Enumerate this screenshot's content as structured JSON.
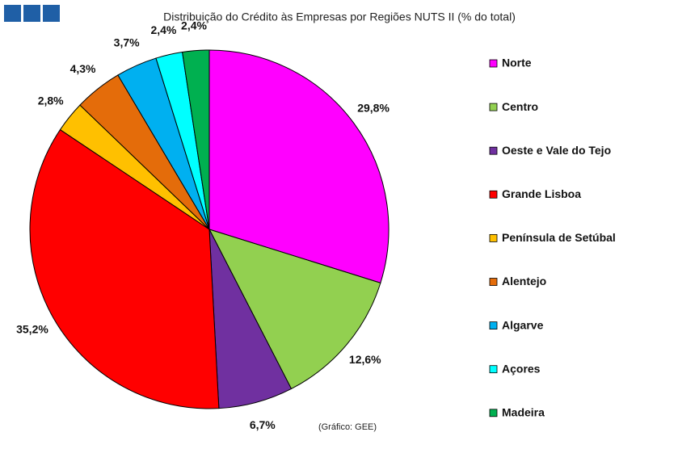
{
  "chart_data": {
    "type": "pie",
    "title": "Distribuição do Crédito às Empresas por Regiões NUTS II (% do total)",
    "categories": [
      "Norte",
      "Centro",
      "Oeste e Vale do Tejo",
      "Grande Lisboa",
      "Península de Setúbal",
      "Alentejo",
      "Algarve",
      "Açores",
      "Madeira"
    ],
    "values": [
      29.8,
      12.6,
      6.7,
      35.2,
      2.8,
      4.3,
      3.7,
      2.4,
      2.4
    ],
    "value_labels": [
      "29,8%",
      "12,6%",
      "6,7%",
      "35,2%",
      "2,8%",
      "4,3%",
      "3,7%",
      "2,4%",
      "2,4%"
    ],
    "colors": [
      "#ff00ff",
      "#92d050",
      "#7030a0",
      "#ff0000",
      "#ffc000",
      "#e46c0a",
      "#00b0f0",
      "#00ffff",
      "#00b050"
    ],
    "source": "(Gráfico: GEE)",
    "legend": "right"
  }
}
